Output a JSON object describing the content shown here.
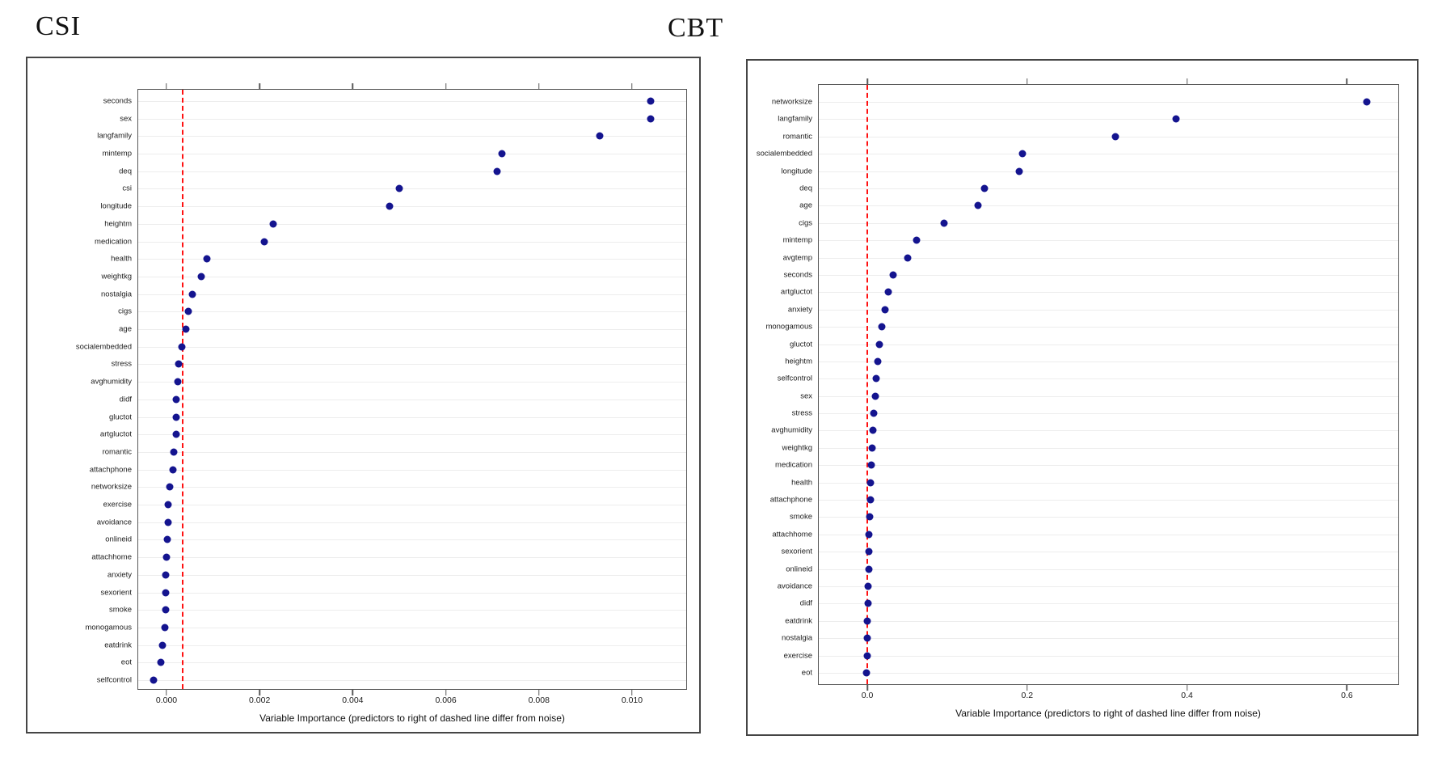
{
  "page": {
    "background": "#ffffff"
  },
  "colors": {
    "point": "#14148f",
    "threshold_line": "#ff1111",
    "grid": "#ededed",
    "frame": "#595959",
    "panel_border": "#454545",
    "text": "#1c1c1c"
  },
  "chart_data": [
    {
      "type": "scatter",
      "subtype": "cleveland-dot-plot",
      "title": "CSI",
      "xlabel": "Variable Importance (predictors to right of dashed line differ from noise)",
      "orientation": "horizontal",
      "grid": true,
      "categories": [
        "seconds",
        "sex",
        "langfamily",
        "mintemp",
        "deq",
        "csi",
        "longitude",
        "heightm",
        "medication",
        "health",
        "weightkg",
        "nostalgia",
        "cigs",
        "age",
        "socialembedded",
        "stress",
        "avghumidity",
        "didf",
        "gluctot",
        "artgluctot",
        "romantic",
        "attachphone",
        "networksize",
        "exercise",
        "avoidance",
        "onlineid",
        "attachhome",
        "anxiety",
        "sexorient",
        "smoke",
        "monogamous",
        "eatdrink",
        "eot",
        "selfcontrol"
      ],
      "values": [
        0.0104,
        0.0104,
        0.0093,
        0.0072,
        0.0071,
        0.005,
        0.0048,
        0.0023,
        0.0021,
        0.00086,
        0.00075,
        0.00056,
        0.00047,
        0.00042,
        0.00033,
        0.00026,
        0.00024,
        0.00021,
        0.0002,
        0.0002,
        0.00016,
        0.00014,
        7e-05,
        4e-05,
        3e-05,
        1e-05,
        0.0,
        -1e-05,
        -1e-05,
        -2e-05,
        -3e-05,
        -9e-05,
        -0.00013,
        -0.00028
      ],
      "threshold_value": 0.00035,
      "threshold_style": "dashed",
      "x_tick_values": [
        0.0,
        0.002,
        0.004,
        0.006,
        0.008,
        0.01
      ],
      "x_tick_labels": [
        "0.000",
        "0.002",
        "0.004",
        "0.006",
        "0.008",
        "0.010"
      ],
      "xlim": [
        -0.000625,
        0.011181
      ]
    },
    {
      "type": "scatter",
      "subtype": "cleveland-dot-plot",
      "title": "CBT",
      "xlabel": "Variable Importance (predictors to right of dashed line differ from noise)",
      "orientation": "horizontal",
      "grid": true,
      "categories": [
        "networksize",
        "langfamily",
        "romantic",
        "socialembedded",
        "longitude",
        "deq",
        "age",
        "cigs",
        "mintemp",
        "avgtemp",
        "seconds",
        "artgluctot",
        "anxiety",
        "monogamous",
        "gluctot",
        "heightm",
        "selfcontrol",
        "sex",
        "stress",
        "avghumidity",
        "weightkg",
        "medication",
        "health",
        "attachphone",
        "smoke",
        "attachhome",
        "sexorient",
        "onlineid",
        "avoidance",
        "didf",
        "eatdrink",
        "nostalgia",
        "exercise",
        "eot"
      ],
      "values": [
        0.625,
        0.386,
        0.31,
        0.194,
        0.19,
        0.147,
        0.138,
        0.096,
        0.062,
        0.051,
        0.032,
        0.026,
        0.022,
        0.018,
        0.015,
        0.013,
        0.011,
        0.01,
        0.008,
        0.007,
        0.006,
        0.005,
        0.004,
        0.004,
        0.003,
        0.0025,
        0.002,
        0.0015,
        0.001,
        0.0005,
        0.0003,
        0.0002,
        -0.0005,
        -0.001
      ],
      "threshold_value": 0.0,
      "threshold_style": "dashed",
      "x_tick_values": [
        0.0,
        0.2,
        0.4,
        0.6
      ],
      "x_tick_labels": [
        "0.0",
        "0.2",
        "0.4",
        "0.6"
      ],
      "xlim": [
        -0.0617,
        0.6653
      ]
    }
  ]
}
